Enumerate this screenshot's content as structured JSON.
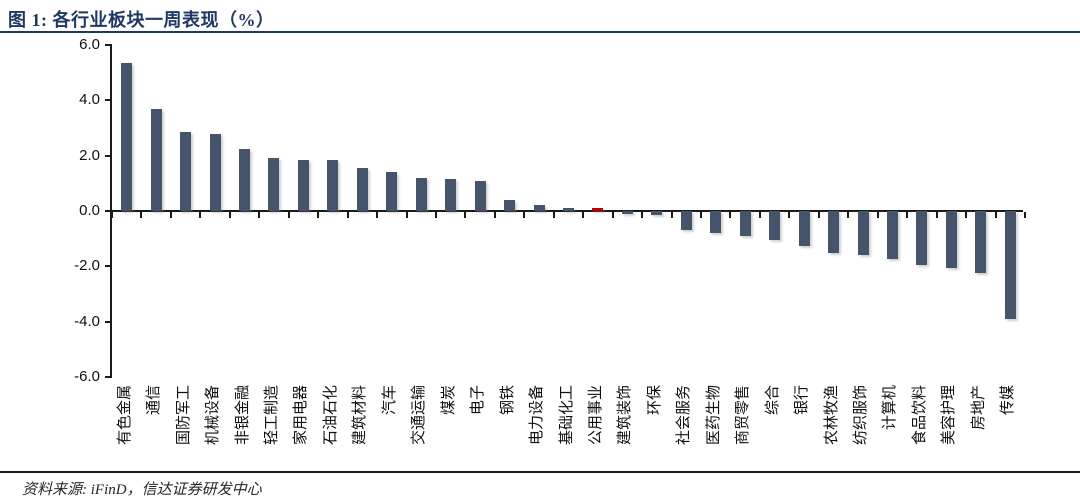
{
  "figure": {
    "title": "图 1: 各行业板块一周表现（%）",
    "source": "资料来源: iFinD，信达证券研发中心"
  },
  "chart_data": {
    "type": "bar",
    "title": "各行业板块一周表现（%）",
    "categories": [
      "有色金属",
      "通信",
      "国防军工",
      "机械设备",
      "非银金融",
      "轻工制造",
      "家用电器",
      "石油石化",
      "建筑材料",
      "汽车",
      "交通运输",
      "煤炭",
      "电子",
      "钢铁",
      "电力设备",
      "基础化工",
      "公用事业",
      "建筑装饰",
      "环保",
      "社会服务",
      "医药生物",
      "商贸零售",
      "综合",
      "银行",
      "农林牧渔",
      "纺织服饰",
      "计算机",
      "食品饮料",
      "美容护理",
      "房地产",
      "传媒"
    ],
    "values": [
      5.35,
      3.7,
      2.85,
      2.8,
      2.25,
      1.9,
      1.85,
      1.85,
      1.55,
      1.4,
      1.2,
      1.15,
      1.1,
      0.4,
      0.2,
      0.1,
      0.12,
      -0.1,
      -0.15,
      -0.7,
      -0.8,
      -0.9,
      -1.05,
      -1.25,
      -1.5,
      -1.6,
      -1.75,
      -1.95,
      -2.05,
      -2.25,
      -3.9
    ],
    "xlabel": "",
    "ylabel": "",
    "ylim": [
      -6.0,
      6.0
    ],
    "yticks": [
      6.0,
      4.0,
      2.0,
      0.0,
      -2.0,
      -4.0,
      -6.0
    ],
    "ytick_labels": [
      "6.0",
      "4.0",
      "2.0",
      "0.0",
      "-2.0",
      "-4.0",
      "-6.0"
    ],
    "grid": false,
    "legend": null,
    "bar_color": "#44546A",
    "highlight_color": "#C00000",
    "highlight_category": "公用事业",
    "highlight_index": 16
  }
}
